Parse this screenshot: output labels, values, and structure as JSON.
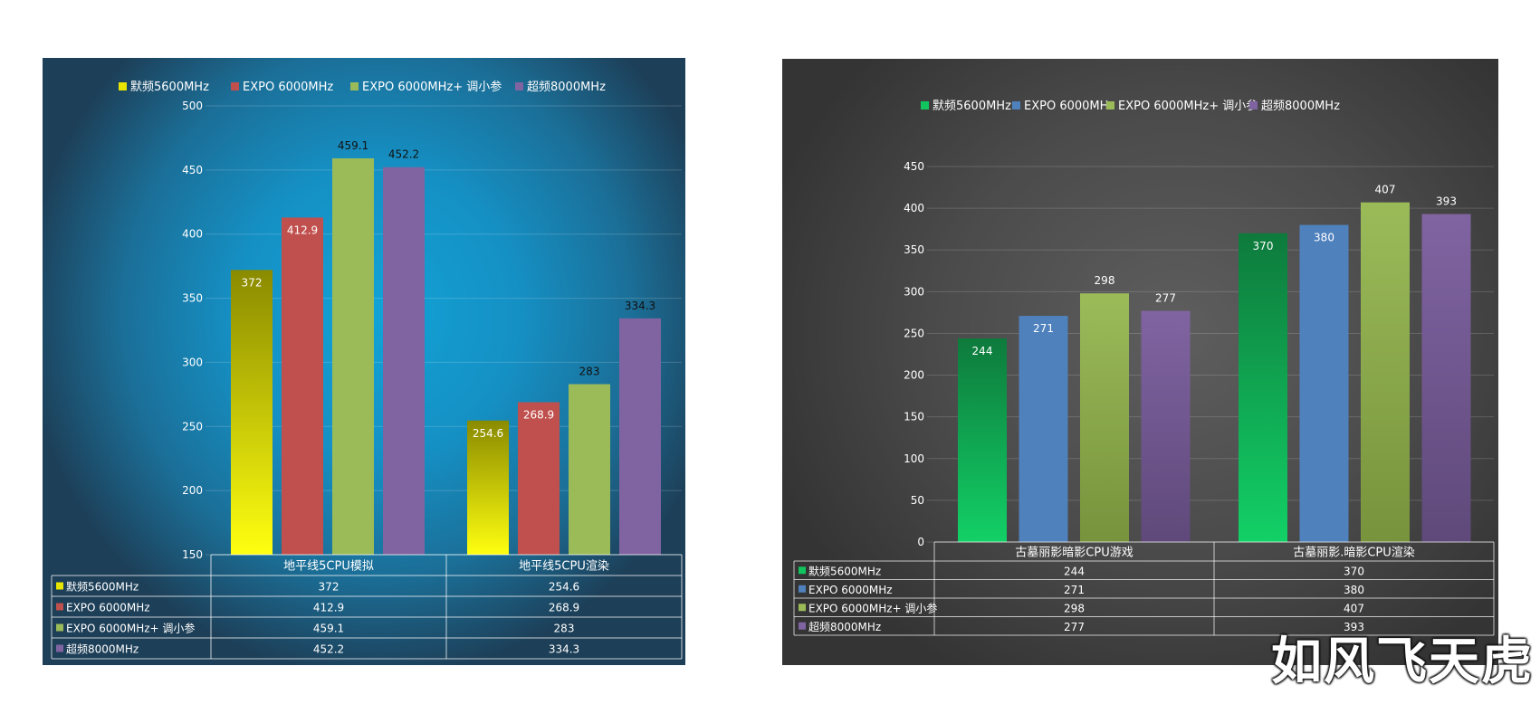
{
  "chart_data": [
    {
      "type": "bar",
      "categories": [
        "地平线5CPU模拟",
        "地平线5CPU渲染"
      ],
      "series": [
        {
          "name": "默频5600MHz",
          "values": [
            372,
            254.6
          ],
          "color": "#e8e600"
        },
        {
          "name": "EXPO 6000MHz",
          "values": [
            412.9,
            268.9
          ],
          "color": "#c0504d"
        },
        {
          "name": "EXPO 6000MHz+ 调小参",
          "values": [
            459.1,
            283
          ],
          "color": "#9bbb59"
        },
        {
          "name": "超频8000MHz",
          "values": [
            452.2,
            334.3
          ],
          "color": "#8064a2"
        }
      ],
      "value_labels": [
        [
          "372",
          "254.6"
        ],
        [
          "412.9",
          "268.9"
        ],
        [
          "459.1",
          "283"
        ],
        [
          "452.2",
          "334.3"
        ]
      ],
      "yticks": [
        "500",
        "450",
        "400",
        "350",
        "300",
        "250",
        "200",
        "150"
      ],
      "ylim": [
        150,
        500
      ],
      "title": "",
      "xlabel": "",
      "ylabel": "",
      "grid": true,
      "legend": "top",
      "data_table": true,
      "background": "#1590c4"
    },
    {
      "type": "bar",
      "categories": [
        "古墓丽影暗影CPU游戏",
        "古墓丽影.暗影CPU渲染"
      ],
      "series": [
        {
          "name": "默频5600MHz",
          "values": [
            244,
            370
          ],
          "color": "#12c45e"
        },
        {
          "name": "EXPO 6000MHz",
          "values": [
            271,
            380
          ],
          "color": "#4f81bd"
        },
        {
          "name": "EXPO 6000MHz+ 调小参",
          "values": [
            298,
            407
          ],
          "color": "#9bbb59"
        },
        {
          "name": "超频8000MHz",
          "values": [
            277,
            393
          ],
          "color": "#8064a2"
        }
      ],
      "value_labels": [
        [
          "244",
          "370"
        ],
        [
          "271",
          "380"
        ],
        [
          "298",
          "407"
        ],
        [
          "277",
          "393"
        ]
      ],
      "yticks": [
        "450",
        "400",
        "350",
        "300",
        "250",
        "200",
        "150",
        "100",
        "50",
        "0"
      ],
      "ylim": [
        0,
        450
      ],
      "title": "",
      "xlabel": "",
      "ylabel": "",
      "grid": true,
      "legend": "top",
      "data_table": true,
      "background": "#4b4b4b"
    }
  ],
  "watermark": "如风飞天虎"
}
